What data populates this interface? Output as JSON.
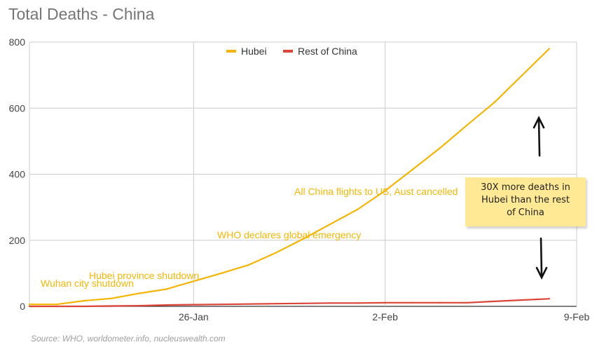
{
  "chart_data": {
    "type": "line",
    "title": "Total Deaths - China",
    "x": [
      "20-Jan",
      "21-Jan",
      "22-Jan",
      "23-Jan",
      "24-Jan",
      "25-Jan",
      "26-Jan",
      "27-Jan",
      "28-Jan",
      "29-Jan",
      "30-Jan",
      "31-Jan",
      "1-Feb",
      "2-Feb",
      "3-Feb",
      "4-Feb",
      "5-Feb",
      "6-Feb",
      "7-Feb",
      "8-Feb"
    ],
    "series": [
      {
        "name": "Hubei",
        "color": "#f4b400",
        "values": [
          6,
          6,
          17,
          24,
          39,
          52,
          76,
          100,
          125,
          162,
          204,
          249,
          294,
          350,
          414,
          479,
          549,
          618,
          699,
          780
        ]
      },
      {
        "name": "Rest of China",
        "color": "#db4437",
        "values": [
          0,
          0,
          0,
          1,
          2,
          4,
          5,
          6,
          7,
          8,
          9,
          10,
          10,
          11,
          11,
          11,
          11,
          15,
          19,
          23
        ]
      }
    ],
    "xticks": [
      "26-Jan",
      "2-Feb",
      "9-Feb"
    ],
    "yticks": [
      0,
      200,
      400,
      600,
      800
    ],
    "ylim": [
      0,
      800
    ],
    "grid": true,
    "legend_position": "top-center",
    "annotations": [
      {
        "text": "Wuhan city shutdown",
        "x": "23-Jan",
        "y": 6
      },
      {
        "text": "Hubei province shutdown",
        "x": "24-Jan",
        "y": 24
      },
      {
        "text": "WHO declares global emergency",
        "x": "31-Jan",
        "y": 204
      },
      {
        "text": "All China flights to US, Aust cancelled",
        "x": "2-Feb",
        "y": 350
      }
    ],
    "note": [
      "30X more deaths in",
      "Hubei than the rest",
      "of China"
    ]
  },
  "source": "Source: WHO, worldometer.info, nucleuswealth.com"
}
